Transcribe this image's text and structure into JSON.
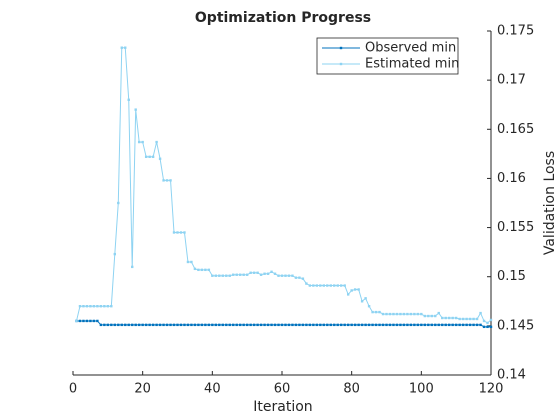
{
  "chart_data": {
    "type": "line",
    "title": "Optimization Progress",
    "x_label": "Iteration",
    "y_label": "Validation Loss",
    "x": [
      1,
      2,
      3,
      4,
      5,
      6,
      7,
      8,
      9,
      10,
      11,
      12,
      13,
      14,
      15,
      16,
      17,
      18,
      19,
      20,
      21,
      22,
      23,
      24,
      25,
      26,
      27,
      28,
      29,
      30,
      31,
      32,
      33,
      34,
      35,
      36,
      37,
      38,
      39,
      40,
      41,
      42,
      43,
      44,
      45,
      46,
      47,
      48,
      49,
      50,
      51,
      52,
      53,
      54,
      55,
      56,
      57,
      58,
      59,
      60,
      61,
      62,
      63,
      64,
      65,
      66,
      67,
      68,
      69,
      70,
      71,
      72,
      73,
      74,
      75,
      76,
      77,
      78,
      79,
      80,
      81,
      82,
      83,
      84,
      85,
      86,
      87,
      88,
      89,
      90,
      91,
      92,
      93,
      94,
      95,
      96,
      97,
      98,
      99,
      100,
      101,
      102,
      103,
      104,
      105,
      106,
      107,
      108,
      109,
      110,
      111,
      112,
      113,
      114,
      115,
      116,
      117,
      118,
      119,
      120
    ],
    "series": [
      {
        "name": "Observed min",
        "color": "#0072bd",
        "values": [
          0.1455,
          0.1455,
          0.1455,
          0.1455,
          0.1455,
          0.1455,
          0.1455,
          0.1451,
          0.1451,
          0.1451,
          0.1451,
          0.1451,
          0.1451,
          0.1451,
          0.1451,
          0.1451,
          0.1451,
          0.1451,
          0.1451,
          0.1451,
          0.1451,
          0.1451,
          0.1451,
          0.1451,
          0.1451,
          0.1451,
          0.1451,
          0.1451,
          0.1451,
          0.1451,
          0.1451,
          0.1451,
          0.1451,
          0.1451,
          0.1451,
          0.1451,
          0.1451,
          0.1451,
          0.1451,
          0.1451,
          0.1451,
          0.1451,
          0.1451,
          0.1451,
          0.1451,
          0.1451,
          0.1451,
          0.1451,
          0.1451,
          0.1451,
          0.1451,
          0.1451,
          0.1451,
          0.1451,
          0.1451,
          0.1451,
          0.1451,
          0.1451,
          0.1451,
          0.1451,
          0.1451,
          0.1451,
          0.1451,
          0.1451,
          0.1451,
          0.1451,
          0.1451,
          0.1451,
          0.1451,
          0.1451,
          0.1451,
          0.1451,
          0.1451,
          0.1451,
          0.1451,
          0.1451,
          0.1451,
          0.1451,
          0.1451,
          0.1451,
          0.1451,
          0.1451,
          0.1451,
          0.1451,
          0.1451,
          0.1451,
          0.1451,
          0.1451,
          0.1451,
          0.1451,
          0.1451,
          0.1451,
          0.1451,
          0.1451,
          0.1451,
          0.1451,
          0.1451,
          0.1451,
          0.1451,
          0.1451,
          0.1451,
          0.1451,
          0.1451,
          0.1451,
          0.1451,
          0.1451,
          0.1451,
          0.1451,
          0.1451,
          0.1451,
          0.1451,
          0.1451,
          0.1451,
          0.1451,
          0.1451,
          0.1451,
          0.1451,
          0.1449,
          0.1449,
          0.1449
        ]
      },
      {
        "name": "Estimated min",
        "color": "#8ed3f2",
        "values": [
          0.1455,
          0.147,
          0.147,
          0.147,
          0.147,
          0.147,
          0.147,
          0.147,
          0.147,
          0.147,
          0.147,
          0.1523,
          0.1575,
          0.1733,
          0.1733,
          0.168,
          0.151,
          0.167,
          0.1637,
          0.1637,
          0.1622,
          0.1622,
          0.1622,
          0.1637,
          0.162,
          0.1598,
          0.1598,
          0.1598,
          0.1545,
          0.1545,
          0.1545,
          0.1545,
          0.1515,
          0.1515,
          0.1508,
          0.1507,
          0.1507,
          0.1507,
          0.1507,
          0.1501,
          0.1501,
          0.1501,
          0.1501,
          0.1501,
          0.1501,
          0.1502,
          0.1502,
          0.1502,
          0.1502,
          0.1502,
          0.1504,
          0.1504,
          0.1504,
          0.1502,
          0.1503,
          0.1503,
          0.1505,
          0.1503,
          0.1501,
          0.1501,
          0.1501,
          0.1501,
          0.1501,
          0.1499,
          0.1499,
          0.1498,
          0.1493,
          0.1491,
          0.1491,
          0.1491,
          0.1491,
          0.1491,
          0.1491,
          0.1491,
          0.1491,
          0.1491,
          0.1491,
          0.1491,
          0.1482,
          0.1486,
          0.1487,
          0.1487,
          0.1475,
          0.1478,
          0.147,
          0.1464,
          0.1464,
          0.1464,
          0.1462,
          0.1462,
          0.1462,
          0.1462,
          0.1462,
          0.1462,
          0.1462,
          0.1462,
          0.1462,
          0.1462,
          0.1462,
          0.1462,
          0.146,
          0.146,
          0.146,
          0.146,
          0.1463,
          0.1458,
          0.1458,
          0.1458,
          0.1458,
          0.1458,
          0.1457,
          0.1457,
          0.1457,
          0.1457,
          0.1457,
          0.1457,
          0.1463,
          0.1455,
          0.1453,
          0.1456
        ]
      }
    ],
    "xlim": [
      0,
      120
    ],
    "xticks": [
      0,
      20,
      40,
      60,
      80,
      100,
      120
    ],
    "ylim": [
      0.14,
      0.175
    ],
    "yticks": [
      0.14,
      0.145,
      0.15,
      0.155,
      0.16,
      0.165,
      0.17,
      0.175
    ],
    "legend": "northeast"
  }
}
